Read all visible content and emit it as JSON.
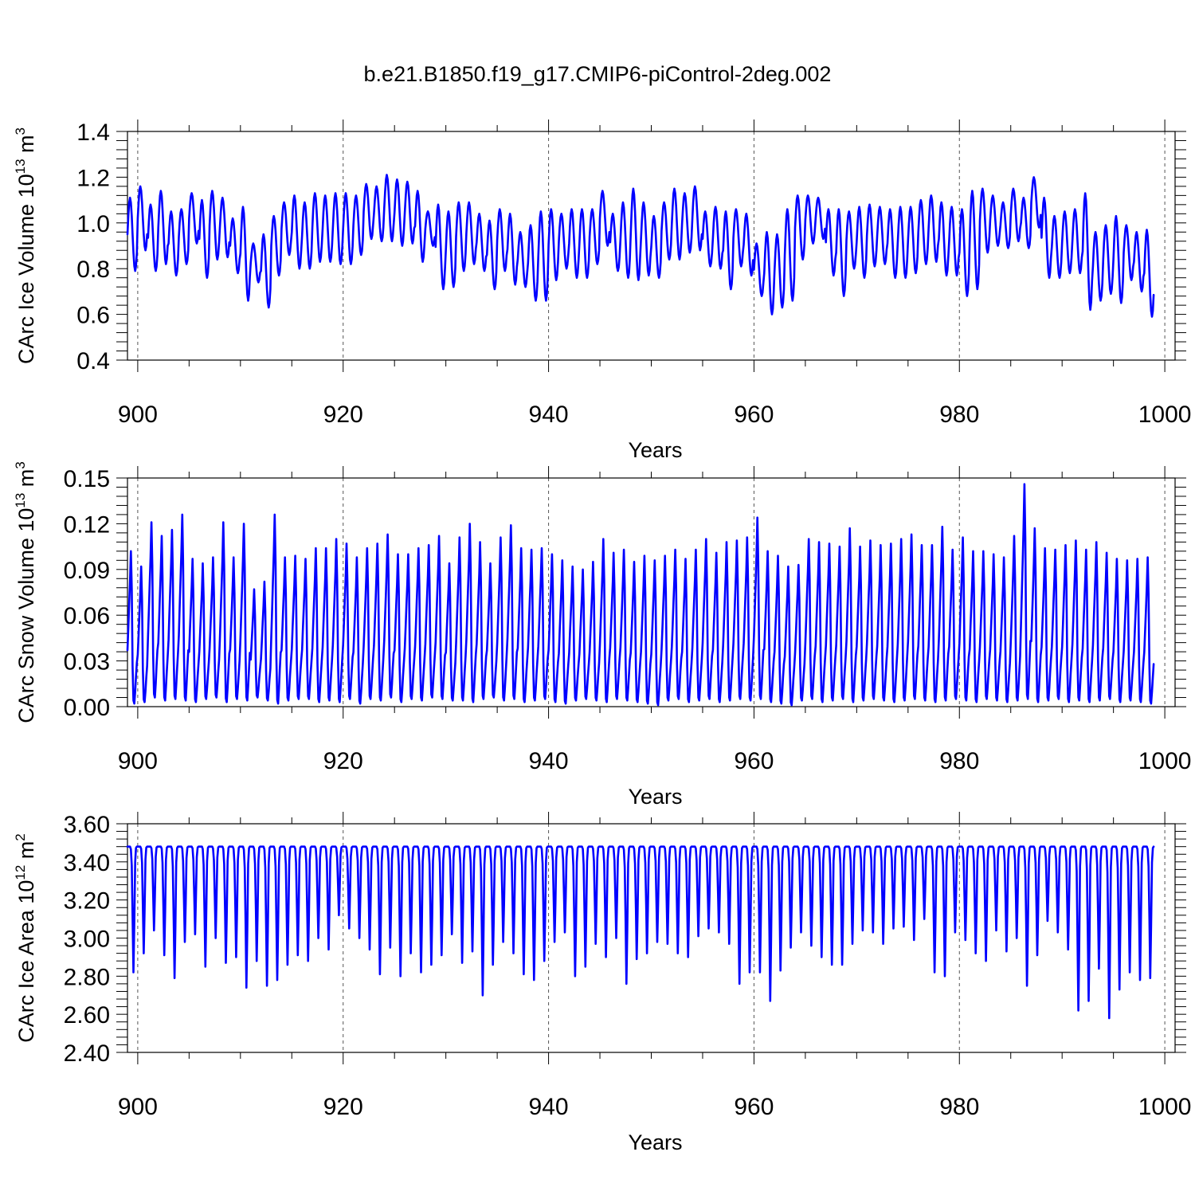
{
  "title": "b.e21.B1850.f19_g17.CMIP6-piControl-2deg.002",
  "colors": {
    "series": "#0000ff",
    "axes": "#000000"
  },
  "chart_data": [
    {
      "type": "line",
      "name": "ice_volume",
      "ylabel": "CArc Ice Volume 10",
      "ylabel_exp": "13",
      "ylabel_unit": " m",
      "ylabel_unit_exp": "3",
      "xlabel": "Years",
      "xlim": [
        899,
        1001
      ],
      "ylim": [
        0.4,
        1.4
      ],
      "xticks": [
        900,
        920,
        940,
        960,
        980,
        1000
      ],
      "xtick_labels": [
        "900",
        "920",
        "940",
        "960",
        "980",
        "1000"
      ],
      "yticks": [
        0.4,
        0.6,
        0.8,
        1.0,
        1.2,
        1.4
      ],
      "ytick_labels": [
        "0.4",
        "0.6",
        "0.8",
        "1.0",
        "1.2",
        "1.4"
      ],
      "grid": "vertical dashed at major x ticks",
      "series": [
        {
          "color": "#0000ff",
          "x_start": 899.0,
          "x_end": 1000.0,
          "yearly_max": [
            1.11,
            1.16,
            1.08,
            1.14,
            1.05,
            1.06,
            1.13,
            1.1,
            1.14,
            1.11,
            1.02,
            1.07,
            0.91,
            0.95,
            1.03,
            1.09,
            1.12,
            1.09,
            1.13,
            1.12,
            1.13,
            1.13,
            1.12,
            1.17,
            1.16,
            1.21,
            1.19,
            1.18,
            1.14,
            1.05,
            1.08,
            1.05,
            1.09,
            1.09,
            1.04,
            1.01,
            1.06,
            1.04,
            0.96,
            0.99,
            1.05,
            1.06,
            1.04,
            1.06,
            1.06,
            1.06,
            1.14,
            1.04,
            1.09,
            1.15,
            1.09,
            1.03,
            1.09,
            1.15,
            1.13,
            1.16,
            1.05,
            1.07,
            1.05,
            1.06,
            1.04,
            0.91,
            0.96,
            0.95,
            1.06,
            1.12,
            1.12,
            1.11,
            1.06,
            1.06,
            1.05,
            1.07,
            1.08,
            1.07,
            1.06,
            1.07,
            1.07,
            1.1,
            1.12,
            1.09,
            1.07,
            1.06,
            1.14,
            1.15,
            1.12,
            1.09,
            1.15,
            1.11,
            1.2,
            1.11,
            1.03,
            1.05,
            1.06,
            1.13,
            0.96,
            0.99,
            1.03,
            0.99,
            0.96,
            0.97
          ],
          "yearly_min": [
            0.79,
            0.88,
            0.79,
            0.82,
            0.77,
            0.82,
            0.91,
            0.76,
            0.84,
            0.85,
            0.78,
            0.66,
            0.74,
            0.63,
            0.77,
            0.86,
            0.8,
            0.8,
            0.83,
            0.83,
            0.82,
            0.82,
            0.86,
            0.93,
            0.92,
            0.92,
            0.9,
            0.91,
            0.83,
            0.9,
            0.71,
            0.72,
            0.79,
            0.82,
            0.79,
            0.71,
            0.79,
            0.73,
            0.72,
            0.66,
            0.66,
            0.75,
            0.8,
            0.76,
            0.76,
            0.82,
            0.9,
            0.79,
            0.76,
            0.75,
            0.77,
            0.76,
            0.84,
            0.84,
            0.87,
            0.88,
            0.81,
            0.8,
            0.71,
            0.81,
            0.77,
            0.68,
            0.6,
            0.63,
            0.66,
            0.84,
            0.91,
            0.93,
            0.77,
            0.68,
            0.8,
            0.76,
            0.81,
            0.82,
            0.76,
            0.76,
            0.78,
            0.82,
            0.83,
            0.77,
            0.77,
            0.68,
            0.71,
            0.87,
            0.9,
            0.89,
            0.92,
            0.89,
            0.98,
            0.76,
            0.76,
            0.78,
            0.78,
            0.62,
            0.66,
            0.69,
            0.65,
            0.75,
            0.7,
            0.59
          ]
        }
      ]
    },
    {
      "type": "line",
      "name": "snow_volume",
      "ylabel": "CArc Snow Volume 10",
      "ylabel_exp": "13",
      "ylabel_unit": " m",
      "ylabel_unit_exp": "3",
      "xlabel": "Years",
      "xlim": [
        899,
        1001
      ],
      "ylim": [
        0.0,
        0.15
      ],
      "xticks": [
        900,
        920,
        940,
        960,
        980,
        1000
      ],
      "xtick_labels": [
        "900",
        "920",
        "940",
        "960",
        "980",
        "1000"
      ],
      "yticks": [
        0.0,
        0.03,
        0.06,
        0.09,
        0.12,
        0.15
      ],
      "ytick_labels": [
        "0.00",
        "0.03",
        "0.06",
        "0.09",
        "0.12",
        "0.15"
      ],
      "grid": "vertical dashed at major x ticks",
      "series": [
        {
          "color": "#0000ff",
          "x_start": 899.0,
          "x_end": 1000.0,
          "yearly_max": [
            0.102,
            0.092,
            0.121,
            0.112,
            0.116,
            0.126,
            0.097,
            0.094,
            0.098,
            0.121,
            0.098,
            0.12,
            0.077,
            0.082,
            0.126,
            0.098,
            0.099,
            0.097,
            0.104,
            0.104,
            0.11,
            0.107,
            0.098,
            0.104,
            0.107,
            0.113,
            0.1,
            0.1,
            0.104,
            0.106,
            0.112,
            0.094,
            0.111,
            0.12,
            0.108,
            0.094,
            0.111,
            0.119,
            0.104,
            0.103,
            0.104,
            0.1,
            0.096,
            0.092,
            0.09,
            0.095,
            0.11,
            0.101,
            0.103,
            0.095,
            0.099,
            0.096,
            0.099,
            0.103,
            0.097,
            0.103,
            0.11,
            0.101,
            0.108,
            0.109,
            0.111,
            0.124,
            0.102,
            0.099,
            0.092,
            0.093,
            0.11,
            0.108,
            0.107,
            0.105,
            0.117,
            0.105,
            0.109,
            0.106,
            0.107,
            0.11,
            0.113,
            0.106,
            0.106,
            0.118,
            0.103,
            0.111,
            0.102,
            0.102,
            0.1,
            0.098,
            0.112,
            0.146,
            0.117,
            0.104,
            0.103,
            0.106,
            0.109,
            0.103,
            0.108,
            0.101,
            0.097,
            0.096,
            0.097,
            0.098
          ],
          "yearly_min": [
            0.002,
            0.003,
            0.006,
            0.004,
            0.005,
            0.004,
            0.003,
            0.005,
            0.006,
            0.003,
            0.005,
            0.004,
            0.006,
            0.004,
            0.002,
            0.004,
            0.005,
            0.005,
            0.003,
            0.004,
            0.003,
            0.005,
            0.002,
            0.005,
            0.004,
            0.006,
            0.003,
            0.005,
            0.004,
            0.006,
            0.005,
            0.004,
            0.004,
            0.003,
            0.005,
            0.006,
            0.004,
            0.005,
            0.003,
            0.004,
            0.005,
            0.003,
            0.002,
            0.004,
            0.005,
            0.004,
            0.003,
            0.005,
            0.004,
            0.003,
            0.002,
            0.001,
            0.004,
            0.005,
            0.003,
            0.004,
            0.005,
            0.003,
            0.004,
            0.005,
            0.004,
            0.005,
            0.003,
            0.002,
            0.001,
            0.004,
            0.005,
            0.003,
            0.004,
            0.005,
            0.003,
            0.004,
            0.005,
            0.004,
            0.003,
            0.004,
            0.005,
            0.004,
            0.003,
            0.004,
            0.005,
            0.004,
            0.003,
            0.005,
            0.004,
            0.003,
            0.004,
            0.005,
            0.003,
            0.004,
            0.005,
            0.003,
            0.004,
            0.003,
            0.004,
            0.005,
            0.003,
            0.004,
            0.003,
            0.002
          ]
        }
      ]
    },
    {
      "type": "line",
      "name": "ice_area",
      "ylabel": "CArc Ice Area 10",
      "ylabel_exp": "12",
      "ylabel_unit": " m",
      "ylabel_unit_exp": "2",
      "xlabel": "Years",
      "xlim": [
        899,
        1001
      ],
      "ylim": [
        2.4,
        3.6
      ],
      "xticks": [
        900,
        920,
        940,
        960,
        980,
        1000
      ],
      "xtick_labels": [
        "900",
        "920",
        "940",
        "960",
        "980",
        "1000"
      ],
      "yticks": [
        2.4,
        2.6,
        2.8,
        3.0,
        3.2,
        3.4,
        3.6
      ],
      "ytick_labels": [
        "2.40",
        "2.60",
        "2.80",
        "3.00",
        "3.20",
        "3.40",
        "3.60"
      ],
      "grid": "vertical dashed at major x ticks",
      "series": [
        {
          "color": "#0000ff",
          "x_start": 899.0,
          "x_end": 1000.0,
          "yearly_max": 3.48,
          "yearly_min": [
            2.82,
            2.92,
            3.04,
            2.91,
            2.79,
            2.98,
            3.02,
            2.85,
            3.0,
            2.87,
            2.9,
            2.74,
            2.88,
            2.75,
            2.78,
            2.86,
            2.91,
            2.88,
            3.0,
            2.94,
            3.12,
            3.05,
            3.0,
            2.94,
            2.81,
            2.95,
            2.8,
            2.92,
            2.82,
            2.86,
            2.91,
            3.02,
            2.87,
            2.93,
            2.7,
            2.86,
            2.98,
            2.92,
            2.81,
            2.78,
            2.88,
            2.98,
            3.03,
            2.8,
            2.85,
            2.97,
            2.9,
            3.0,
            2.76,
            2.89,
            2.92,
            2.98,
            2.97,
            2.92,
            2.9,
            3.01,
            3.05,
            3.03,
            2.97,
            2.76,
            2.82,
            2.82,
            2.67,
            2.83,
            2.95,
            3.03,
            2.96,
            2.9,
            2.86,
            2.86,
            2.97,
            3.04,
            3.03,
            2.97,
            3.05,
            3.06,
            2.99,
            3.1,
            2.82,
            2.8,
            3.03,
            2.99,
            2.92,
            2.88,
            3.04,
            2.93,
            3.0,
            2.75,
            2.91,
            3.09,
            3.03,
            2.94,
            2.62,
            2.67,
            2.84,
            2.58,
            2.73,
            2.82,
            2.78,
            2.79
          ]
        }
      ]
    }
  ]
}
